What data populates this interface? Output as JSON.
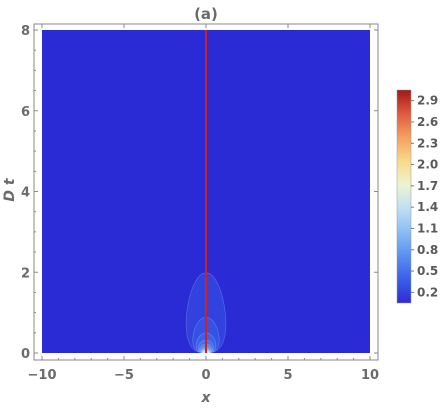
{
  "chart_data": {
    "type": "heatmap",
    "title": "(a)",
    "xlabel": "x",
    "ylabel": "D t",
    "xlim": [
      -10,
      10
    ],
    "ylim": [
      0,
      8
    ],
    "x_ticks": [
      -10,
      -5,
      0,
      5,
      10
    ],
    "y_ticks": [
      0,
      2,
      4,
      6,
      8
    ],
    "x_tick_labels": [
      "−10",
      "−5",
      "0",
      "5",
      "10"
    ],
    "y_tick_labels": [
      "0",
      "2",
      "4",
      "6",
      "8"
    ],
    "field": "gaussian diffusion kernel spreading from a point source at x = 0",
    "vertical_line": {
      "x": 0,
      "color": "#d62020"
    },
    "colorbar": {
      "range": [
        0.05,
        3.05
      ],
      "tick_values": [
        0.2,
        0.5,
        0.8,
        1.1,
        1.4,
        1.7,
        2.0,
        2.3,
        2.6,
        2.9
      ],
      "tick_labels": [
        "0.2",
        "0.5",
        "0.8",
        "1.1",
        "1.4",
        "1.7",
        "2.0",
        "2.3",
        "2.6",
        "2.9"
      ],
      "colors": [
        "#2b2bd6",
        "#3a5fe8",
        "#5b90f0",
        "#8cbcf3",
        "#bfe0f3",
        "#eef4d0",
        "#f8d98a",
        "#f4a060",
        "#e05a40",
        "#a01818"
      ]
    }
  }
}
